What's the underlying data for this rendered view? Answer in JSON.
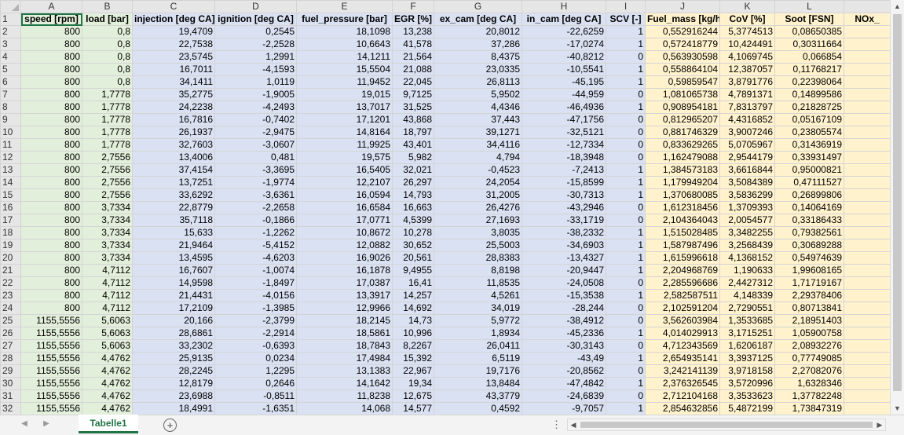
{
  "sheet": {
    "active_tab": "Tabelle1",
    "columns": [
      "A",
      "B",
      "C",
      "D",
      "E",
      "F",
      "G",
      "H",
      "I",
      "J",
      "K",
      "L",
      ""
    ],
    "headers": [
      "speed [rpm]",
      "load [bar]",
      "injection [deg CA]",
      "ignition [deg CA]",
      "fuel_pressure [bar]",
      "EGR [%]",
      "ex_cam [deg CA]",
      "in_cam [deg CA]",
      "SCV [-]",
      "Fuel_mass [kg/h]",
      "CoV [%]",
      "Soot [FSN]",
      "NOx_"
    ],
    "rows": [
      {
        "n": "2",
        "c": [
          "800",
          "0,8",
          "19,4709",
          "0,2545",
          "18,1098",
          "13,238",
          "20,8012",
          "-22,6259",
          "1",
          "0,552916244",
          "5,3774513",
          "0,08650385",
          ""
        ]
      },
      {
        "n": "3",
        "c": [
          "800",
          "0,8",
          "22,7538",
          "-2,2528",
          "10,6643",
          "41,578",
          "37,286",
          "-17,0274",
          "1",
          "0,572418779",
          "10,424491",
          "0,30311664",
          ""
        ]
      },
      {
        "n": "4",
        "c": [
          "800",
          "0,8",
          "23,5745",
          "1,2991",
          "14,1211",
          "21,564",
          "8,4375",
          "-40,8212",
          "0",
          "0,563930598",
          "4,1069745",
          "0,066854",
          ""
        ]
      },
      {
        "n": "5",
        "c": [
          "800",
          "0,8",
          "16,7011",
          "-4,1593",
          "15,5504",
          "21,088",
          "23,0335",
          "-10,5541",
          "1",
          "0,558864104",
          "12,387057",
          "0,11768217",
          ""
        ]
      },
      {
        "n": "6",
        "c": [
          "800",
          "0,8",
          "34,1411",
          "1,0119",
          "11,9452",
          "22,045",
          "26,8113",
          "-45,195",
          "1",
          "0,59859547",
          "3,8791776",
          "0,22398064",
          ""
        ]
      },
      {
        "n": "7",
        "c": [
          "800",
          "1,7778",
          "35,2775",
          "-1,9005",
          "19,015",
          "9,7125",
          "5,9502",
          "-44,959",
          "0",
          "1,081065738",
          "4,7891371",
          "0,14899586",
          ""
        ]
      },
      {
        "n": "8",
        "c": [
          "800",
          "1,7778",
          "24,2238",
          "-4,2493",
          "13,7017",
          "31,525",
          "4,4346",
          "-46,4936",
          "1",
          "0,908954181",
          "7,8313797",
          "0,21828725",
          ""
        ]
      },
      {
        "n": "9",
        "c": [
          "800",
          "1,7778",
          "16,7816",
          "-0,7402",
          "17,1201",
          "43,868",
          "37,443",
          "-47,1756",
          "0",
          "0,812965207",
          "4,4316852",
          "0,05167109",
          ""
        ]
      },
      {
        "n": "10",
        "c": [
          "800",
          "1,7778",
          "26,1937",
          "-2,9475",
          "14,8164",
          "18,797",
          "39,1271",
          "-32,5121",
          "0",
          "0,881746329",
          "3,9007246",
          "0,23805574",
          ""
        ]
      },
      {
        "n": "11",
        "c": [
          "800",
          "1,7778",
          "32,7603",
          "-3,0607",
          "11,9925",
          "43,401",
          "34,4116",
          "-12,7334",
          "0",
          "0,833629265",
          "5,0705967",
          "0,31436919",
          ""
        ]
      },
      {
        "n": "12",
        "c": [
          "800",
          "2,7556",
          "13,4006",
          "0,481",
          "19,575",
          "5,982",
          "4,794",
          "-18,3948",
          "0",
          "1,162479088",
          "2,9544179",
          "0,33931497",
          ""
        ]
      },
      {
        "n": "13",
        "c": [
          "800",
          "2,7556",
          "37,4154",
          "-3,3695",
          "16,5405",
          "32,021",
          "-0,4523",
          "-7,2413",
          "1",
          "1,384573183",
          "3,6616844",
          "0,95000821",
          ""
        ]
      },
      {
        "n": "14",
        "c": [
          "800",
          "2,7556",
          "13,7251",
          "-1,9774",
          "12,2107",
          "26,297",
          "24,2054",
          "-15,8599",
          "1",
          "1,179949204",
          "3,5084389",
          "0,47111527",
          ""
        ]
      },
      {
        "n": "15",
        "c": [
          "800",
          "2,7556",
          "33,6292",
          "-3,6361",
          "16,0594",
          "14,793",
          "31,2005",
          "-30,7313",
          "1",
          "1,370680085",
          "3,5836299",
          "0,26899806",
          ""
        ]
      },
      {
        "n": "16",
        "c": [
          "800",
          "3,7334",
          "22,8779",
          "-2,2658",
          "16,6584",
          "16,663",
          "26,4276",
          "-43,2946",
          "0",
          "1,612318456",
          "1,3709393",
          "0,14064169",
          ""
        ]
      },
      {
        "n": "17",
        "c": [
          "800",
          "3,7334",
          "35,7118",
          "-0,1866",
          "17,0771",
          "4,5399",
          "27,1693",
          "-33,1719",
          "0",
          "2,104364043",
          "2,0054577",
          "0,33186433",
          ""
        ]
      },
      {
        "n": "18",
        "c": [
          "800",
          "3,7334",
          "15,633",
          "-1,2262",
          "10,8672",
          "10,278",
          "3,8035",
          "-38,2332",
          "1",
          "1,515028485",
          "3,3482255",
          "0,79382561",
          ""
        ]
      },
      {
        "n": "19",
        "c": [
          "800",
          "3,7334",
          "21,9464",
          "-5,4152",
          "12,0882",
          "30,652",
          "25,5003",
          "-34,6903",
          "1",
          "1,587987496",
          "3,2568439",
          "0,30689288",
          ""
        ]
      },
      {
        "n": "20",
        "c": [
          "800",
          "3,7334",
          "13,4595",
          "-4,6203",
          "16,9026",
          "20,561",
          "28,8383",
          "-13,4327",
          "1",
          "1,615996618",
          "4,1368152",
          "0,54974639",
          ""
        ]
      },
      {
        "n": "21",
        "c": [
          "800",
          "4,7112",
          "16,7607",
          "-1,0074",
          "16,1878",
          "9,4955",
          "8,8198",
          "-20,9447",
          "1",
          "2,204968769",
          "1,190633",
          "1,99608165",
          ""
        ]
      },
      {
        "n": "22",
        "c": [
          "800",
          "4,7112",
          "14,9598",
          "-1,8497",
          "17,0387",
          "16,41",
          "11,8535",
          "-24,0508",
          "0",
          "2,285596686",
          "2,4427312",
          "1,71719167",
          ""
        ]
      },
      {
        "n": "23",
        "c": [
          "800",
          "4,7112",
          "21,4431",
          "-4,0156",
          "13,3917",
          "14,257",
          "4,5261",
          "-15,3538",
          "1",
          "2,582587511",
          "4,148339",
          "2,29378406",
          ""
        ]
      },
      {
        "n": "24",
        "c": [
          "800",
          "4,7112",
          "17,2109",
          "-1,3985",
          "12,9966",
          "14,692",
          "34,019",
          "-28,244",
          "0",
          "2,102591204",
          "2,7290551",
          "0,80713841",
          ""
        ]
      },
      {
        "n": "25",
        "c": [
          "1155,5556",
          "5,6063",
          "20,166",
          "-2,3799",
          "18,2145",
          "14,73",
          "5,9772",
          "-38,4912",
          "0",
          "3,562603984",
          "1,3533685",
          "2,18951403",
          ""
        ]
      },
      {
        "n": "26",
        "c": [
          "1155,5556",
          "5,6063",
          "28,6861",
          "-2,2914",
          "18,5861",
          "10,996",
          "1,8934",
          "-45,2336",
          "1",
          "4,014029913",
          "3,1715251",
          "1,05900758",
          ""
        ]
      },
      {
        "n": "27",
        "c": [
          "1155,5556",
          "5,6063",
          "33,2302",
          "-0,6393",
          "18,7843",
          "8,2267",
          "26,0411",
          "-30,3143",
          "0",
          "4,712343569",
          "1,6206187",
          "2,08932276",
          ""
        ]
      },
      {
        "n": "28",
        "c": [
          "1155,5556",
          "4,4762",
          "25,9135",
          "0,0234",
          "17,4984",
          "15,392",
          "6,5119",
          "-43,49",
          "1",
          "2,654935141",
          "3,3937125",
          "0,77749085",
          ""
        ]
      },
      {
        "n": "29",
        "c": [
          "1155,5556",
          "4,4762",
          "28,2245",
          "1,2295",
          "13,1383",
          "22,967",
          "19,7176",
          "-20,8562",
          "0",
          "3,242141139",
          "3,9718158",
          "2,27082076",
          ""
        ]
      },
      {
        "n": "30",
        "c": [
          "1155,5556",
          "4,4762",
          "12,8179",
          "0,2646",
          "14,1642",
          "19,34",
          "13,8484",
          "-47,4842",
          "1",
          "2,376326545",
          "3,5720996",
          "1,6328346",
          ""
        ]
      },
      {
        "n": "31",
        "c": [
          "1155,5556",
          "4,4762",
          "23,6988",
          "-0,8511",
          "11,8238",
          "12,675",
          "43,3779",
          "-24,6839",
          "0",
          "2,712104168",
          "3,3533623",
          "1,37782248",
          ""
        ]
      },
      {
        "n": "32",
        "c": [
          "1155,5556",
          "4,4762",
          "18,4991",
          "-1,6351",
          "14,068",
          "14,577",
          "0,4592",
          "-9,7057",
          "1",
          "2,854632856",
          "5,4872199",
          "1,73847319",
          ""
        ]
      }
    ]
  },
  "icons": {
    "prev": "◀",
    "next": "▶",
    "add": "+",
    "dots": "⋮",
    "up": "▲",
    "down": "▼",
    "left": "◀",
    "right": "▶"
  },
  "colors": {
    "input_group": "#e2efda",
    "control_group": "#d9e1f2",
    "output_group": "#fff2cc",
    "accent": "#217346"
  }
}
